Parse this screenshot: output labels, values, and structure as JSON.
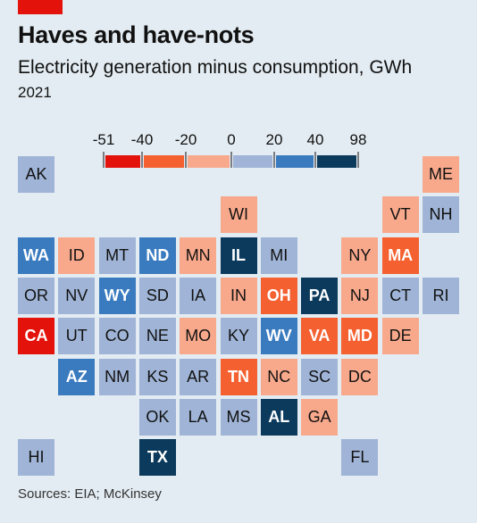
{
  "header": {
    "title": "Haves and have-nots",
    "subtitle": "Electricity generation minus consumption, GWh",
    "year": "2021"
  },
  "footer": {
    "source": "Sources: EIA; McKinsey"
  },
  "colors": {
    "bin0": "#e3120b",
    "bin1": "#f4602f",
    "bin2": "#f8a98c",
    "bin3": "#9fb4d6",
    "bin4": "#3a7bbf",
    "bin5": "#0b3a5c"
  },
  "chart_data": {
    "type": "heatmap",
    "legend": {
      "ticks": [
        "-51",
        "-40",
        "-20",
        "0",
        "20",
        "40",
        "98"
      ],
      "bins": [
        {
          "range": [
            -51,
            -40
          ],
          "color": "#e3120b"
        },
        {
          "range": [
            -40,
            -20
          ],
          "color": "#f4602f"
        },
        {
          "range": [
            -20,
            0
          ],
          "color": "#f8a98c"
        },
        {
          "range": [
            0,
            20
          ],
          "color": "#9fb4d6"
        },
        {
          "range": [
            20,
            40
          ],
          "color": "#3a7bbf"
        },
        {
          "range": [
            40,
            98
          ],
          "color": "#0b3a5c"
        }
      ]
    },
    "states": [
      {
        "code": "AK",
        "row": 0,
        "col": 0,
        "bin": 3
      },
      {
        "code": "ME",
        "row": 0,
        "col": 10,
        "bin": 2
      },
      {
        "code": "WI",
        "row": 1,
        "col": 5,
        "bin": 2
      },
      {
        "code": "VT",
        "row": 1,
        "col": 9,
        "bin": 2
      },
      {
        "code": "NH",
        "row": 1,
        "col": 10,
        "bin": 3
      },
      {
        "code": "WA",
        "row": 2,
        "col": 0,
        "bin": 4
      },
      {
        "code": "ID",
        "row": 2,
        "col": 1,
        "bin": 2
      },
      {
        "code": "MT",
        "row": 2,
        "col": 2,
        "bin": 3
      },
      {
        "code": "ND",
        "row": 2,
        "col": 3,
        "bin": 4
      },
      {
        "code": "MN",
        "row": 2,
        "col": 4,
        "bin": 2
      },
      {
        "code": "IL",
        "row": 2,
        "col": 5,
        "bin": 5
      },
      {
        "code": "MI",
        "row": 2,
        "col": 6,
        "bin": 3
      },
      {
        "code": "NY",
        "row": 2,
        "col": 8,
        "bin": 2
      },
      {
        "code": "MA",
        "row": 2,
        "col": 9,
        "bin": 1
      },
      {
        "code": "OR",
        "row": 3,
        "col": 0,
        "bin": 3
      },
      {
        "code": "NV",
        "row": 3,
        "col": 1,
        "bin": 3
      },
      {
        "code": "WY",
        "row": 3,
        "col": 2,
        "bin": 4
      },
      {
        "code": "SD",
        "row": 3,
        "col": 3,
        "bin": 3
      },
      {
        "code": "IA",
        "row": 3,
        "col": 4,
        "bin": 3
      },
      {
        "code": "IN",
        "row": 3,
        "col": 5,
        "bin": 2
      },
      {
        "code": "OH",
        "row": 3,
        "col": 6,
        "bin": 1
      },
      {
        "code": "PA",
        "row": 3,
        "col": 7,
        "bin": 5
      },
      {
        "code": "NJ",
        "row": 3,
        "col": 8,
        "bin": 2
      },
      {
        "code": "CT",
        "row": 3,
        "col": 9,
        "bin": 3
      },
      {
        "code": "RI",
        "row": 3,
        "col": 10,
        "bin": 3
      },
      {
        "code": "CA",
        "row": 4,
        "col": 0,
        "bin": 0
      },
      {
        "code": "UT",
        "row": 4,
        "col": 1,
        "bin": 3
      },
      {
        "code": "CO",
        "row": 4,
        "col": 2,
        "bin": 3
      },
      {
        "code": "NE",
        "row": 4,
        "col": 3,
        "bin": 3
      },
      {
        "code": "MO",
        "row": 4,
        "col": 4,
        "bin": 2
      },
      {
        "code": "KY",
        "row": 4,
        "col": 5,
        "bin": 3
      },
      {
        "code": "WV",
        "row": 4,
        "col": 6,
        "bin": 4
      },
      {
        "code": "VA",
        "row": 4,
        "col": 7,
        "bin": 1
      },
      {
        "code": "MD",
        "row": 4,
        "col": 8,
        "bin": 1
      },
      {
        "code": "DE",
        "row": 4,
        "col": 9,
        "bin": 2
      },
      {
        "code": "AZ",
        "row": 5,
        "col": 1,
        "bin": 4
      },
      {
        "code": "NM",
        "row": 5,
        "col": 2,
        "bin": 3
      },
      {
        "code": "KS",
        "row": 5,
        "col": 3,
        "bin": 3
      },
      {
        "code": "AR",
        "row": 5,
        "col": 4,
        "bin": 3
      },
      {
        "code": "TN",
        "row": 5,
        "col": 5,
        "bin": 1
      },
      {
        "code": "NC",
        "row": 5,
        "col": 6,
        "bin": 2
      },
      {
        "code": "SC",
        "row": 5,
        "col": 7,
        "bin": 3
      },
      {
        "code": "DC",
        "row": 5,
        "col": 8,
        "bin": 2
      },
      {
        "code": "OK",
        "row": 6,
        "col": 3,
        "bin": 3
      },
      {
        "code": "LA",
        "row": 6,
        "col": 4,
        "bin": 3
      },
      {
        "code": "MS",
        "row": 6,
        "col": 5,
        "bin": 3
      },
      {
        "code": "AL",
        "row": 6,
        "col": 6,
        "bin": 5
      },
      {
        "code": "GA",
        "row": 6,
        "col": 7,
        "bin": 2
      },
      {
        "code": "HI",
        "row": 7,
        "col": 0,
        "bin": 3
      },
      {
        "code": "TX",
        "row": 7,
        "col": 3,
        "bin": 5
      },
      {
        "code": "FL",
        "row": 7,
        "col": 8,
        "bin": 3
      }
    ]
  }
}
